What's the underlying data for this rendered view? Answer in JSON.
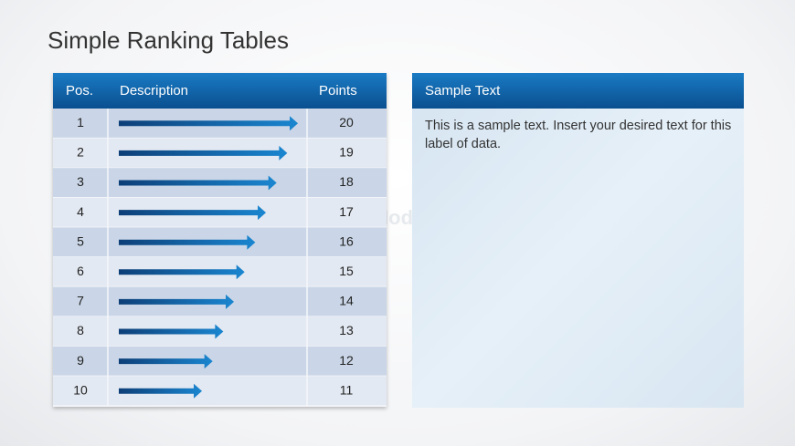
{
  "title": "Simple Ranking Tables",
  "table": {
    "header": [
      "Pos.",
      "Description",
      "Points"
    ],
    "rows": [
      [
        1,
        20
      ],
      [
        2,
        19
      ],
      [
        3,
        18
      ],
      [
        4,
        17
      ],
      [
        5,
        16
      ],
      [
        6,
        15
      ],
      [
        7,
        14
      ],
      [
        8,
        13
      ],
      [
        9,
        12
      ],
      [
        10,
        11
      ]
    ]
  },
  "panel": {
    "title": "Sample Text",
    "body": "This is a sample text. Insert your desired text for this label of data."
  },
  "watermark": "SlideModel.com"
}
